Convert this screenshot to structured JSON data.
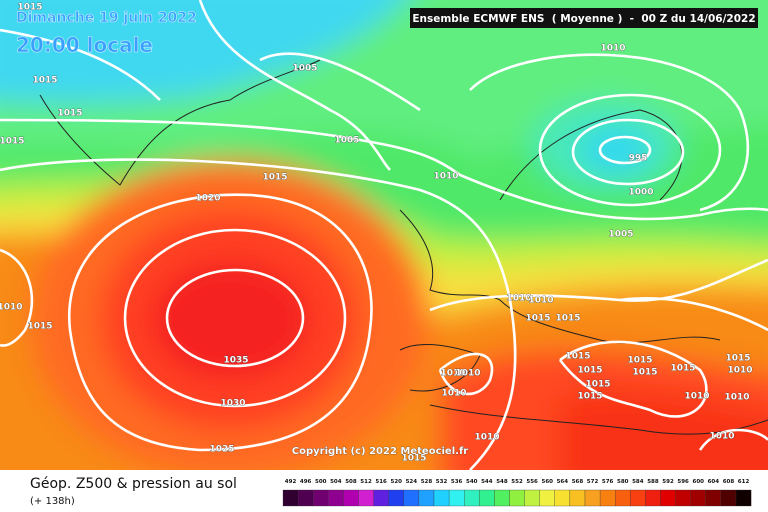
{
  "header": {
    "date": "Dimanche 19 juin 2022",
    "time": "20:00 locale",
    "model": "Ensemble ECMWF ENS  ( Moyenne )  -  00 Z du 14/06/2022"
  },
  "copyright": "Copyright (c) 2022 Meteociel.fr",
  "footer": {
    "title": "Géop. Z500 & pression au sol",
    "lead": "(+ 138h)"
  },
  "isobar_labels": [
    1015,
    1015,
    1015,
    1015,
    1005,
    1005,
    1015,
    1020,
    1010,
    1010,
    995,
    1000,
    1005,
    1010,
    1015,
    1035,
    1030,
    1025,
    1010,
    1010,
    1015,
    1015,
    1015,
    1010,
    1010,
    1015,
    1015,
    1015,
    1010,
    1015,
    1015,
    1015,
    1015,
    1010,
    1010,
    1010,
    1010,
    1010,
    1015
  ],
  "scale": {
    "values": [
      492,
      496,
      500,
      504,
      508,
      512,
      516,
      520,
      524,
      528,
      532,
      536,
      540,
      544,
      548,
      552,
      556,
      560,
      564,
      568,
      572,
      576,
      580,
      584,
      588,
      592,
      596,
      600,
      604,
      608,
      612
    ],
    "colors": [
      "#300030",
      "#500050",
      "#700070",
      "#900090",
      "#b000b0",
      "#d020d0",
      "#6020e0",
      "#2040f0",
      "#2070ff",
      "#20a0ff",
      "#20d0ff",
      "#30f0f0",
      "#30f0c0",
      "#30f090",
      "#50f060",
      "#90f040",
      "#c0f040",
      "#f0f040",
      "#f8e030",
      "#f8c020",
      "#f8a020",
      "#f88010",
      "#f86010",
      "#f84010",
      "#f02010",
      "#e00000",
      "#c00000",
      "#a00000",
      "#800000",
      "#500000",
      "#100000"
    ]
  }
}
